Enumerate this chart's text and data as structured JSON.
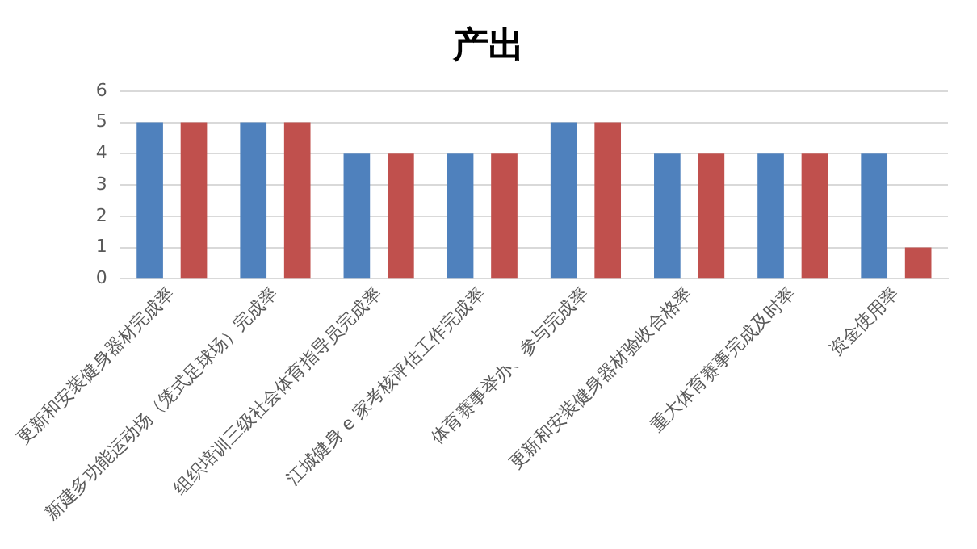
{
  "chart_data": {
    "type": "bar",
    "title": "产出",
    "categories": [
      "更新和安装健身器材完成率",
      "新建多功能运动场（笼式足球场）完成率",
      "组织培训三级社会体育指导员完成率",
      "江城健身 e 家考核评估工作完成率",
      "体育赛事举办、参与完成率",
      "更新和安装健身器材验收合格率",
      "重大体育赛事完成及时率",
      "资金使用率"
    ],
    "series": [
      {
        "color": "#4f81bd",
        "values": [
          5,
          5,
          4,
          4,
          5,
          4,
          4,
          4
        ]
      },
      {
        "color": "#c0504d",
        "values": [
          5,
          5,
          4,
          4,
          5,
          4,
          4,
          1
        ]
      }
    ],
    "ylim": [
      0,
      6
    ],
    "yticks": [
      0,
      1,
      2,
      3,
      4,
      5,
      6
    ],
    "grid": "y",
    "legend": false
  }
}
